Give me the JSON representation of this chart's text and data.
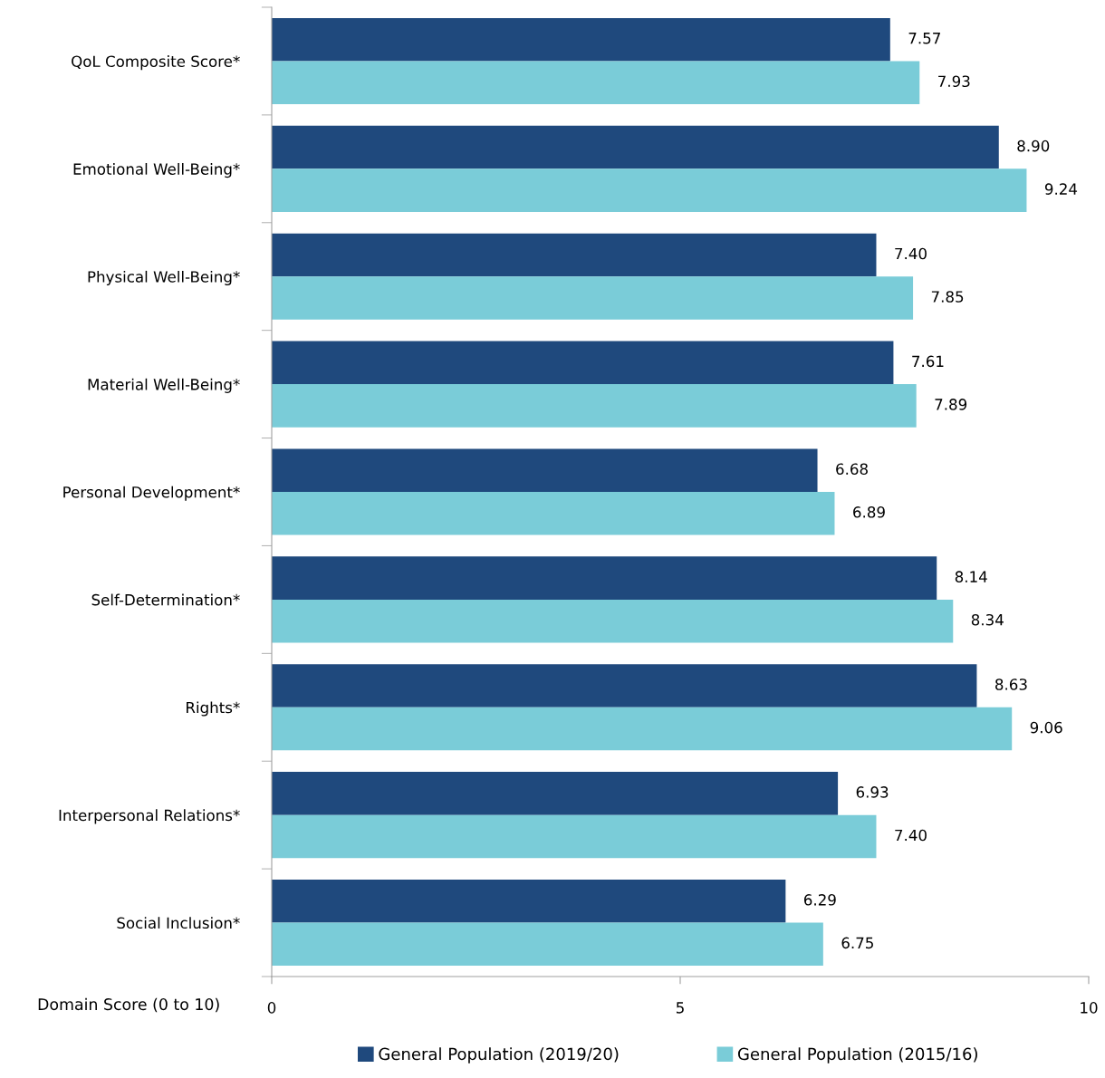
{
  "chart_data": {
    "type": "bar",
    "orientation": "horizontal",
    "xlabel": "Domain Score (0 to 10)",
    "categories": [
      "QoL Composite Score*",
      "Emotional Well-Being*",
      "Physical Well-Being*",
      "Material Well-Being*",
      "Personal Development*",
      "Self-Determination*",
      "Rights*",
      "Interpersonal Relations*",
      "Social Inclusion*"
    ],
    "series": [
      {
        "name": "General Population (2019/20)",
        "color": "#1f497d",
        "values": [
          7.57,
          8.9,
          7.4,
          7.61,
          6.68,
          8.14,
          8.63,
          6.93,
          6.29
        ],
        "value_labels": [
          "7.57",
          "8.90",
          "7.40",
          "7.61",
          "6.68",
          "8.14",
          "8.63",
          "6.93",
          "6.29"
        ]
      },
      {
        "name": "General Population (2015/16)",
        "color": "#7accd8",
        "values": [
          7.93,
          9.24,
          7.85,
          7.89,
          6.89,
          8.34,
          9.06,
          7.4,
          6.75
        ],
        "value_labels": [
          "7.93",
          "9.24",
          "7.85",
          "7.89",
          "6.89",
          "8.34",
          "9.06",
          "7.40",
          "6.75"
        ]
      }
    ],
    "xlim": [
      0,
      10
    ],
    "xticks": [
      0,
      5,
      10
    ],
    "grid": false,
    "legend": "bottom"
  }
}
